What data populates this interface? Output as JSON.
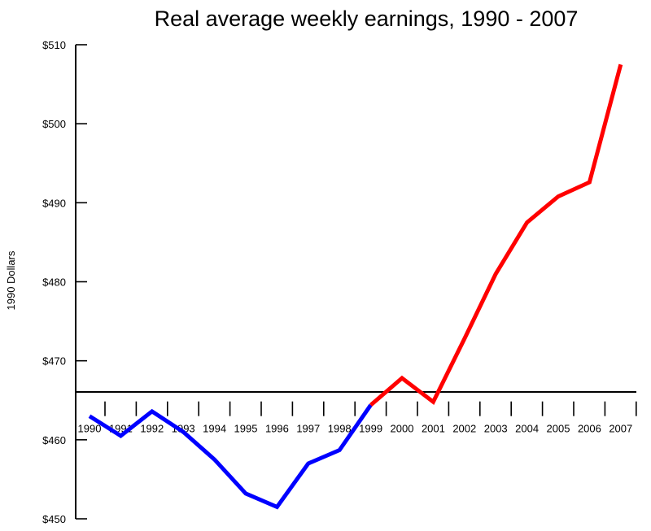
{
  "chart_data": {
    "type": "line",
    "title": "Real average weekly earnings, 1990 - 2007",
    "ylabel": "1990 Dollars",
    "xlabel": "",
    "ylim": [
      450,
      510
    ],
    "yticks": [
      450,
      460,
      470,
      480,
      490,
      500,
      510
    ],
    "ytick_labels": [
      "$450",
      "$460",
      "$470",
      "$480",
      "$490",
      "$500",
      "$510"
    ],
    "x": [
      1990,
      1991,
      1992,
      1993,
      1994,
      1995,
      1996,
      1997,
      1998,
      1999,
      2000,
      2001,
      2002,
      2003,
      2004,
      2005,
      2006,
      2007
    ],
    "xtick_labels": [
      "1990",
      "1991",
      "1992",
      "1993",
      "1994",
      "1995",
      "1996",
      "1997",
      "1998",
      "1999",
      "2000",
      "2001",
      "2002",
      "2003",
      "2004",
      "2005",
      "2006",
      "2007"
    ],
    "x_axis_crosses_y": 463,
    "grid": false,
    "legend": "none",
    "series": [
      {
        "color": "#0000ff",
        "x": [
          1990,
          1991,
          1992,
          1993,
          1994,
          1995,
          1996,
          1997,
          1998,
          1999
        ],
        "values": [
          463,
          460.5,
          463.6,
          461.0,
          457.5,
          453.2,
          451.5,
          457.0,
          458.7,
          464.4
        ]
      },
      {
        "color": "#ff0000",
        "x": [
          1999,
          2000,
          2001,
          2002,
          2003,
          2004,
          2005,
          2006,
          2007
        ],
        "values": [
          464.4,
          467.8,
          464.8,
          472.8,
          481.0,
          487.5,
          490.8,
          492.6,
          507.5
        ]
      }
    ]
  }
}
